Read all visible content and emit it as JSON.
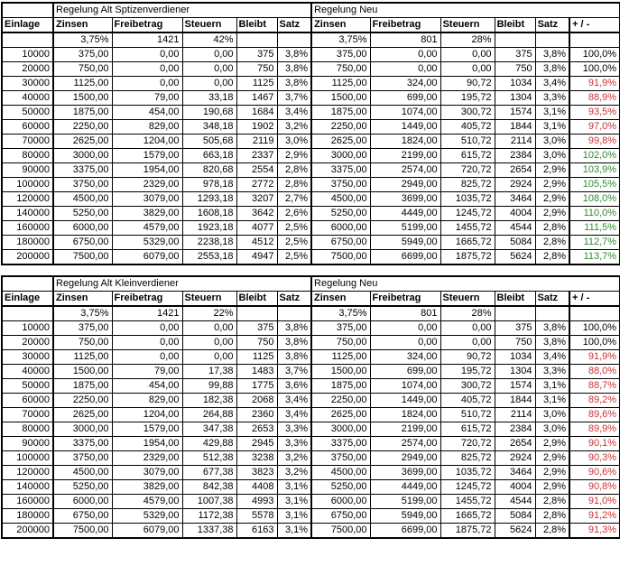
{
  "colors": {
    "neutral": "#000000",
    "negative": "#cc3333",
    "positive": "#2f8b2f"
  },
  "tables": [
    {
      "alt_title": "Regelung Alt Sptizenverdiener",
      "neu_title": "Regelung Neu",
      "columns": [
        "Einlage",
        "Zinsen",
        "Freibetrag",
        "Steuern",
        "Bleibt",
        "Satz",
        "Zinsen",
        "Freibetrag",
        "Steuern",
        "Bleibt",
        "Satz",
        "+ / -"
      ],
      "alt_params": [
        "3,75%",
        "1421",
        "42%"
      ],
      "neu_params": [
        "3,75%",
        "801",
        "28%"
      ],
      "rows": [
        {
          "cells": [
            "10000",
            "375,00",
            "0,00",
            "0,00",
            "375",
            "3,8%",
            "375,00",
            "0,00",
            "0,00",
            "375",
            "3,8%",
            "100,0%"
          ],
          "delta_color": "neutral"
        },
        {
          "cells": [
            "20000",
            "750,00",
            "0,00",
            "0,00",
            "750",
            "3,8%",
            "750,00",
            "0,00",
            "0,00",
            "750",
            "3,8%",
            "100,0%"
          ],
          "delta_color": "neutral"
        },
        {
          "cells": [
            "30000",
            "1125,00",
            "0,00",
            "0,00",
            "1125",
            "3,8%",
            "1125,00",
            "324,00",
            "90,72",
            "1034",
            "3,4%",
            "91,9%"
          ],
          "delta_color": "negative"
        },
        {
          "cells": [
            "40000",
            "1500,00",
            "79,00",
            "33,18",
            "1467",
            "3,7%",
            "1500,00",
            "699,00",
            "195,72",
            "1304",
            "3,3%",
            "88,9%"
          ],
          "delta_color": "negative"
        },
        {
          "cells": [
            "50000",
            "1875,00",
            "454,00",
            "190,68",
            "1684",
            "3,4%",
            "1875,00",
            "1074,00",
            "300,72",
            "1574",
            "3,1%",
            "93,5%"
          ],
          "delta_color": "negative"
        },
        {
          "cells": [
            "60000",
            "2250,00",
            "829,00",
            "348,18",
            "1902",
            "3,2%",
            "2250,00",
            "1449,00",
            "405,72",
            "1844",
            "3,1%",
            "97,0%"
          ],
          "delta_color": "negative"
        },
        {
          "cells": [
            "70000",
            "2625,00",
            "1204,00",
            "505,68",
            "2119",
            "3,0%",
            "2625,00",
            "1824,00",
            "510,72",
            "2114",
            "3,0%",
            "99,8%"
          ],
          "delta_color": "negative"
        },
        {
          "cells": [
            "80000",
            "3000,00",
            "1579,00",
            "663,18",
            "2337",
            "2,9%",
            "3000,00",
            "2199,00",
            "615,72",
            "2384",
            "3,0%",
            "102,0%"
          ],
          "delta_color": "positive"
        },
        {
          "cells": [
            "90000",
            "3375,00",
            "1954,00",
            "820,68",
            "2554",
            "2,8%",
            "3375,00",
            "2574,00",
            "720,72",
            "2654",
            "2,9%",
            "103,9%"
          ],
          "delta_color": "positive"
        },
        {
          "cells": [
            "100000",
            "3750,00",
            "2329,00",
            "978,18",
            "2772",
            "2,8%",
            "3750,00",
            "2949,00",
            "825,72",
            "2924",
            "2,9%",
            "105,5%"
          ],
          "delta_color": "positive"
        },
        {
          "cells": [
            "120000",
            "4500,00",
            "3079,00",
            "1293,18",
            "3207",
            "2,7%",
            "4500,00",
            "3699,00",
            "1035,72",
            "3464",
            "2,9%",
            "108,0%"
          ],
          "delta_color": "positive"
        },
        {
          "cells": [
            "140000",
            "5250,00",
            "3829,00",
            "1608,18",
            "3642",
            "2,6%",
            "5250,00",
            "4449,00",
            "1245,72",
            "4004",
            "2,9%",
            "110,0%"
          ],
          "delta_color": "positive"
        },
        {
          "cells": [
            "160000",
            "6000,00",
            "4579,00",
            "1923,18",
            "4077",
            "2,5%",
            "6000,00",
            "5199,00",
            "1455,72",
            "4544",
            "2,8%",
            "111,5%"
          ],
          "delta_color": "positive"
        },
        {
          "cells": [
            "180000",
            "6750,00",
            "5329,00",
            "2238,18",
            "4512",
            "2,5%",
            "6750,00",
            "5949,00",
            "1665,72",
            "5084",
            "2,8%",
            "112,7%"
          ],
          "delta_color": "positive"
        },
        {
          "cells": [
            "200000",
            "7500,00",
            "6079,00",
            "2553,18",
            "4947",
            "2,5%",
            "7500,00",
            "6699,00",
            "1875,72",
            "5624",
            "2,8%",
            "113,7%"
          ],
          "delta_color": "positive"
        }
      ]
    },
    {
      "alt_title": "Regelung Alt Kleinverdiener",
      "neu_title": "Regelung Neu",
      "columns": [
        "Einlage",
        "Zinsen",
        "Freibetrag",
        "Steuern",
        "Bleibt",
        "Satz",
        "Zinsen",
        "Freibetrag",
        "Steuern",
        "Bleibt",
        "Satz",
        "+ / -"
      ],
      "alt_params": [
        "3,75%",
        "1421",
        "22%"
      ],
      "neu_params": [
        "3,75%",
        "801",
        "28%"
      ],
      "rows": [
        {
          "cells": [
            "10000",
            "375,00",
            "0,00",
            "0,00",
            "375",
            "3,8%",
            "375,00",
            "0,00",
            "0,00",
            "375",
            "3,8%",
            "100,0%"
          ],
          "delta_color": "neutral"
        },
        {
          "cells": [
            "20000",
            "750,00",
            "0,00",
            "0,00",
            "750",
            "3,8%",
            "750,00",
            "0,00",
            "0,00",
            "750",
            "3,8%",
            "100,0%"
          ],
          "delta_color": "neutral"
        },
        {
          "cells": [
            "30000",
            "1125,00",
            "0,00",
            "0,00",
            "1125",
            "3,8%",
            "1125,00",
            "324,00",
            "90,72",
            "1034",
            "3,4%",
            "91,9%"
          ],
          "delta_color": "negative"
        },
        {
          "cells": [
            "40000",
            "1500,00",
            "79,00",
            "17,38",
            "1483",
            "3,7%",
            "1500,00",
            "699,00",
            "195,72",
            "1304",
            "3,3%",
            "88,0%"
          ],
          "delta_color": "negative"
        },
        {
          "cells": [
            "50000",
            "1875,00",
            "454,00",
            "99,88",
            "1775",
            "3,6%",
            "1875,00",
            "1074,00",
            "300,72",
            "1574",
            "3,1%",
            "88,7%"
          ],
          "delta_color": "negative"
        },
        {
          "cells": [
            "60000",
            "2250,00",
            "829,00",
            "182,38",
            "2068",
            "3,4%",
            "2250,00",
            "1449,00",
            "405,72",
            "1844",
            "3,1%",
            "89,2%"
          ],
          "delta_color": "negative"
        },
        {
          "cells": [
            "70000",
            "2625,00",
            "1204,00",
            "264,88",
            "2360",
            "3,4%",
            "2625,00",
            "1824,00",
            "510,72",
            "2114",
            "3,0%",
            "89,6%"
          ],
          "delta_color": "negative"
        },
        {
          "cells": [
            "80000",
            "3000,00",
            "1579,00",
            "347,38",
            "2653",
            "3,3%",
            "3000,00",
            "2199,00",
            "615,72",
            "2384",
            "3,0%",
            "89,9%"
          ],
          "delta_color": "negative"
        },
        {
          "cells": [
            "90000",
            "3375,00",
            "1954,00",
            "429,88",
            "2945",
            "3,3%",
            "3375,00",
            "2574,00",
            "720,72",
            "2654",
            "2,9%",
            "90,1%"
          ],
          "delta_color": "negative"
        },
        {
          "cells": [
            "100000",
            "3750,00",
            "2329,00",
            "512,38",
            "3238",
            "3,2%",
            "3750,00",
            "2949,00",
            "825,72",
            "2924",
            "2,9%",
            "90,3%"
          ],
          "delta_color": "negative"
        },
        {
          "cells": [
            "120000",
            "4500,00",
            "3079,00",
            "677,38",
            "3823",
            "3,2%",
            "4500,00",
            "3699,00",
            "1035,72",
            "3464",
            "2,9%",
            "90,6%"
          ],
          "delta_color": "negative"
        },
        {
          "cells": [
            "140000",
            "5250,00",
            "3829,00",
            "842,38",
            "4408",
            "3,1%",
            "5250,00",
            "4449,00",
            "1245,72",
            "4004",
            "2,9%",
            "90,8%"
          ],
          "delta_color": "negative"
        },
        {
          "cells": [
            "160000",
            "6000,00",
            "4579,00",
            "1007,38",
            "4993",
            "3,1%",
            "6000,00",
            "5199,00",
            "1455,72",
            "4544",
            "2,8%",
            "91,0%"
          ],
          "delta_color": "negative"
        },
        {
          "cells": [
            "180000",
            "6750,00",
            "5329,00",
            "1172,38",
            "5578",
            "3,1%",
            "6750,00",
            "5949,00",
            "1665,72",
            "5084",
            "2,8%",
            "91,2%"
          ],
          "delta_color": "negative"
        },
        {
          "cells": [
            "200000",
            "7500,00",
            "6079,00",
            "1337,38",
            "6163",
            "3,1%",
            "7500,00",
            "6699,00",
            "1875,72",
            "5624",
            "2,8%",
            "91,3%"
          ],
          "delta_color": "negative"
        }
      ]
    }
  ]
}
